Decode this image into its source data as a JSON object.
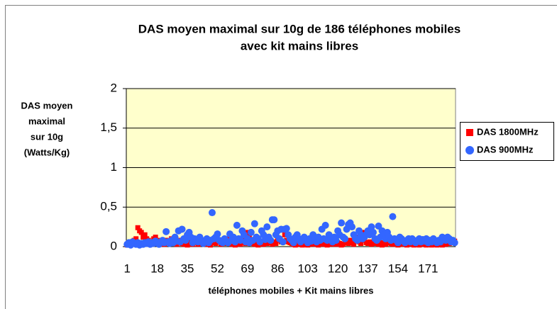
{
  "chart_data": {
    "type": "scatter",
    "title": [
      "DAS moyen maximal sur 10g de 186 téléphones mobiles",
      "avec kit mains libres"
    ],
    "y_label": [
      "DAS moyen",
      "maximal",
      "sur 10g",
      "(Watts/Kg)"
    ],
    "x_label": "téléphones mobiles + Kit mains libres",
    "ylim": [
      0,
      2
    ],
    "yticks": [
      0,
      {
        "value": 0.5,
        "label": "0,5"
      },
      1,
      {
        "value": 1.5,
        "label": "1,5"
      },
      2
    ],
    "grid": true,
    "legend": "right",
    "categories": [
      "1",
      null,
      null,
      null,
      null,
      null,
      null,
      null,
      null,
      null,
      null,
      null,
      null,
      null,
      null,
      null,
      null,
      "18",
      null,
      null,
      null,
      null,
      null,
      null,
      null,
      null,
      null,
      null,
      null,
      null,
      null,
      null,
      null,
      null,
      "35",
      null,
      null,
      null,
      null,
      null,
      null,
      null,
      null,
      null,
      null,
      null,
      null,
      null,
      null,
      null,
      null,
      "52",
      null,
      null,
      null,
      null,
      null,
      null,
      null,
      null,
      null,
      null,
      null,
      null,
      null,
      null,
      null,
      null,
      "69",
      null,
      null,
      null,
      null,
      null,
      null,
      null,
      null,
      null,
      null,
      null,
      null,
      null,
      null,
      null,
      null,
      "86",
      null,
      null,
      null,
      null,
      null,
      null,
      null,
      null,
      null,
      null,
      null,
      null,
      null,
      null,
      null,
      null,
      "103",
      null,
      null,
      null,
      null,
      null,
      null,
      null,
      null,
      null,
      null,
      null,
      null,
      null,
      null,
      null,
      null,
      "120",
      null,
      null,
      null,
      null,
      null,
      null,
      null,
      null,
      null,
      null,
      null,
      null,
      null,
      null,
      null,
      null,
      "137",
      null,
      null,
      null,
      null,
      null,
      null,
      null,
      null,
      null,
      null,
      null,
      null,
      null,
      null,
      null,
      null,
      "154",
      null,
      null,
      null,
      null,
      null,
      null,
      null,
      null,
      null,
      null,
      null,
      null,
      null,
      null,
      null,
      null,
      "171",
      null,
      null,
      null,
      null,
      null,
      null,
      null,
      null,
      null,
      null,
      null,
      null,
      null,
      null,
      null
    ],
    "series": [
      {
        "name": "DAS 1800MHz",
        "color": "#ff0000",
        "marker": "square",
        "values": [
          0.02,
          0.03,
          0.05,
          0.04,
          0.08,
          0.1,
          0.24,
          0.2,
          0.18,
          0.12,
          0.15,
          0.1,
          0.08,
          0.06,
          0.05,
          0.1,
          0.12,
          0.08,
          0.06,
          0.04,
          0.05,
          0.03,
          0.08,
          0.06,
          0.04,
          0.1,
          0.07,
          0.05,
          0.03,
          0.06,
          0.08,
          0.04,
          0.03,
          0.05,
          0.02,
          0.06,
          0.04,
          0.03,
          0.07,
          0.05,
          0.03,
          0.04,
          0.06,
          0.08,
          0.05,
          0.03,
          0.04,
          0.02,
          0.05,
          0.06,
          0.04,
          0.08,
          0.06,
          0.03,
          0.05,
          0.07,
          0.04,
          0.1,
          0.06,
          0.03,
          0.05,
          0.02,
          0.04,
          0.06,
          0.03,
          0.05,
          0.08,
          0.04,
          0.18,
          0.12,
          0.06,
          0.04,
          0.03,
          0.05,
          0.02,
          0.04,
          0.06,
          0.03,
          0.05,
          0.04,
          0.07,
          0.05,
          0.03,
          0.06,
          0.04,
          0.08,
          0.1,
          0.06,
          0.22,
          0.15,
          0.08,
          0.06,
          0.05,
          0.04,
          0.03,
          0.02,
          0.04,
          0.03,
          0.05,
          0.02,
          0.03,
          0.04,
          0.02,
          0.05,
          0.03,
          0.04,
          0.06,
          0.03,
          0.02,
          0.04,
          0.05,
          0.03,
          0.04,
          0.02,
          0.06,
          0.03,
          0.05,
          0.04,
          0.03,
          0.05,
          0.04,
          0.02,
          0.03,
          0.05,
          0.06,
          0.04,
          0.08,
          0.05,
          0.03,
          0.1,
          0.12,
          0.06,
          0.04,
          0.18,
          0.08,
          0.05,
          0.04,
          0.06,
          0.03,
          0.05,
          0.04,
          0.06,
          0.03,
          0.05,
          0.02,
          0.04,
          0.03,
          0.05,
          0.06,
          0.04,
          0.03,
          0.05,
          0.04,
          0.02,
          0.03,
          0.05,
          0.04,
          0.03,
          0.02,
          0.04,
          0.03,
          0.05,
          0.02,
          0.04,
          0.03,
          0.02,
          0.04,
          0.03,
          0.05,
          0.02,
          0.03,
          0.04,
          0.02,
          0.03,
          0.05,
          0.02,
          0.04,
          0.03,
          0.02,
          0.04,
          0.03,
          0.05,
          0.04,
          0.06,
          0.08,
          0.07
        ]
      },
      {
        "name": "DAS 900MHz",
        "color": "#3366ff",
        "marker": "circle",
        "values": [
          0.03,
          0.05,
          0.02,
          0.06,
          0.04,
          0.03,
          0.05,
          0.02,
          0.04,
          0.03,
          0.05,
          0.04,
          0.06,
          0.03,
          0.05,
          0.04,
          0.07,
          0.05,
          0.03,
          0.06,
          0.08,
          0.05,
          0.19,
          0.06,
          0.04,
          0.08,
          0.05,
          0.12,
          0.07,
          0.2,
          0.06,
          0.22,
          0.1,
          0.08,
          0.15,
          0.18,
          0.12,
          0.05,
          0.1,
          0.07,
          0.06,
          0.12,
          0.08,
          0.04,
          0.06,
          0.1,
          0.05,
          0.08,
          0.43,
          0.1,
          0.12,
          0.16,
          0.08,
          0.06,
          0.05,
          0.1,
          0.07,
          0.05,
          0.16,
          0.08,
          0.12,
          0.06,
          0.27,
          0.1,
          0.08,
          0.2,
          0.15,
          0.06,
          0.1,
          0.05,
          0.18,
          0.08,
          0.29,
          0.12,
          0.1,
          0.06,
          0.2,
          0.15,
          0.09,
          0.25,
          0.12,
          0.08,
          0.34,
          0.34,
          0.15,
          0.2,
          0.1,
          0.22,
          0.06,
          0.22,
          0.23,
          0.15,
          0.1,
          0.08,
          0.05,
          0.12,
          0.15,
          0.1,
          0.06,
          0.08,
          0.12,
          0.08,
          0.05,
          0.1,
          0.07,
          0.15,
          0.1,
          0.06,
          0.12,
          0.08,
          0.22,
          0.1,
          0.27,
          0.08,
          0.15,
          0.1,
          0.06,
          0.12,
          0.08,
          0.2,
          0.15,
          0.3,
          0.12,
          0.1,
          0.22,
          0.28,
          0.3,
          0.25,
          0.15,
          0.1,
          0.08,
          0.2,
          0.15,
          0.1,
          0.12,
          0.15,
          0.2,
          0.15,
          0.25,
          0.18,
          0.1,
          0.08,
          0.26,
          0.12,
          0.2,
          0.15,
          0.1,
          0.18,
          0.12,
          0.08,
          0.38,
          0.1,
          0.08,
          0.05,
          0.12,
          0.1,
          0.07,
          0.05,
          0.08,
          0.1,
          0.06,
          0.1,
          0.07,
          0.05,
          0.08,
          0.1,
          0.06,
          0.09,
          0.07,
          0.1,
          0.05,
          0.08,
          0.06,
          0.1,
          0.07,
          0.05,
          0.08,
          0.06,
          0.12,
          0.1,
          0.08,
          0.12,
          0.1,
          0.06,
          0.08,
          0.05
        ]
      }
    ]
  }
}
